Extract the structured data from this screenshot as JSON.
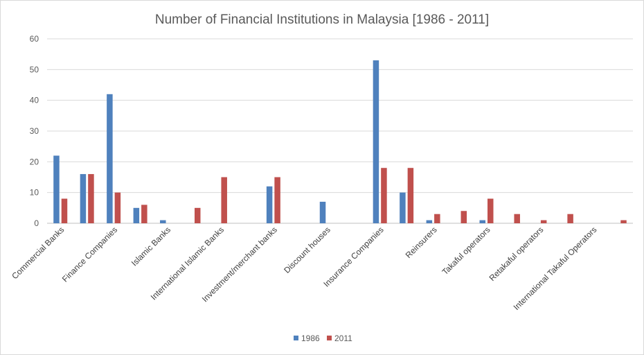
{
  "chart_data": {
    "type": "bar",
    "title": "Number of Financial Institutions in Malaysia [1986 - 2011]",
    "xlabel": "",
    "ylabel": "",
    "ylim": [
      0,
      60
    ],
    "yticks": [
      "0",
      "10",
      "20",
      "30",
      "40",
      "50",
      "60"
    ],
    "grid": true,
    "legend_position": "bottom",
    "categories": [
      "Commercial Banks",
      "Finance Companies",
      "Islamic Banks",
      "International Islamic Banks",
      "Investment/merchant banks",
      "Discount houses",
      "Insurance Companies",
      "Reinsurers",
      "Takaful operators",
      "Retakaful operators",
      "International Takaful Operators"
    ],
    "bar_slots": [
      {
        "values": [
          22,
          8
        ]
      },
      {
        "values": [
          16,
          16
        ]
      },
      {
        "values": [
          42,
          10
        ]
      },
      {
        "values": [
          5,
          6
        ]
      },
      {
        "values": [
          1,
          0
        ]
      },
      {
        "values": [
          0,
          5
        ]
      },
      {
        "values": [
          0,
          15
        ]
      },
      {
        "values": [
          0,
          0
        ]
      },
      {
        "values": [
          12,
          15
        ]
      },
      {
        "values": [
          0,
          0
        ]
      },
      {
        "values": [
          7,
          0
        ]
      },
      {
        "values": [
          0,
          0
        ]
      },
      {
        "values": [
          53,
          18
        ]
      },
      {
        "values": [
          10,
          18
        ]
      },
      {
        "values": [
          1,
          3
        ]
      },
      {
        "values": [
          0,
          4
        ]
      },
      {
        "values": [
          1,
          8
        ]
      },
      {
        "values": [
          0,
          3
        ]
      },
      {
        "values": [
          0,
          1
        ]
      },
      {
        "values": [
          0,
          3
        ]
      },
      {
        "values": [
          0,
          0
        ]
      },
      {
        "values": [
          0,
          1
        ]
      }
    ],
    "series": [
      {
        "name": "1986",
        "color": "#4f81bd"
      },
      {
        "name": "2011",
        "color": "#c0504d"
      }
    ]
  }
}
